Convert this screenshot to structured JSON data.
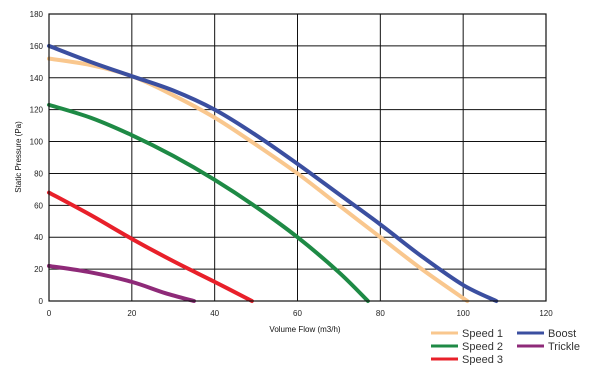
{
  "chart_data": {
    "type": "line",
    "title": "",
    "xlabel": "Volume Flow (m3/h)",
    "ylabel": "Static Pressure (Pa)",
    "xlim": [
      0,
      120
    ],
    "ylim": [
      0,
      180
    ],
    "xticks": [
      "0",
      "20",
      "40",
      "60",
      "80",
      "100",
      "120"
    ],
    "yticks": [
      "0",
      "20",
      "40",
      "60",
      "80",
      "100",
      "120",
      "140",
      "160",
      "180"
    ],
    "grid": true,
    "legend_position": "bottom-right",
    "series": [
      {
        "name": "Speed 1",
        "color": "#f9c78e",
        "points": [
          [
            0,
            152
          ],
          [
            10,
            148
          ],
          [
            20,
            141
          ],
          [
            30,
            129
          ],
          [
            40,
            115
          ],
          [
            50,
            98
          ],
          [
            60,
            80
          ],
          [
            70,
            60
          ],
          [
            80,
            40
          ],
          [
            90,
            20
          ],
          [
            101,
            0
          ]
        ]
      },
      {
        "name": "Speed 2",
        "color": "#1e8a45",
        "points": [
          [
            0,
            123
          ],
          [
            10,
            115
          ],
          [
            20,
            104
          ],
          [
            30,
            91
          ],
          [
            40,
            76
          ],
          [
            50,
            59
          ],
          [
            60,
            40
          ],
          [
            70,
            18
          ],
          [
            77,
            0
          ]
        ]
      },
      {
        "name": "Speed 3",
        "color": "#e8202a",
        "points": [
          [
            0,
            68
          ],
          [
            10,
            54
          ],
          [
            20,
            39
          ],
          [
            30,
            25
          ],
          [
            40,
            12
          ],
          [
            49,
            0
          ]
        ]
      },
      {
        "name": "Boost",
        "color": "#3b4fa0",
        "points": [
          [
            0,
            160
          ],
          [
            10,
            150
          ],
          [
            20,
            141
          ],
          [
            30,
            132
          ],
          [
            40,
            120
          ],
          [
            50,
            104
          ],
          [
            60,
            86
          ],
          [
            70,
            67
          ],
          [
            80,
            48
          ],
          [
            90,
            28
          ],
          [
            100,
            10
          ],
          [
            108,
            0
          ]
        ]
      },
      {
        "name": "Trickle",
        "color": "#8e2a78",
        "points": [
          [
            0,
            22
          ],
          [
            10,
            18
          ],
          [
            20,
            12
          ],
          [
            28,
            5
          ],
          [
            35,
            0
          ]
        ]
      }
    ]
  }
}
